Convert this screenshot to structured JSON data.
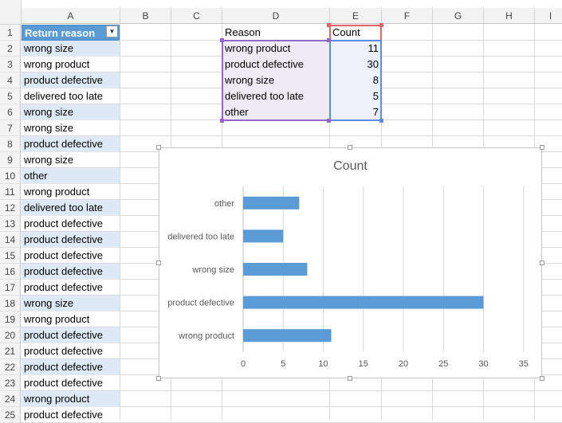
{
  "columns": [
    "A",
    "B",
    "C",
    "D",
    "E",
    "F",
    "G",
    "H",
    "I"
  ],
  "rows": [
    "1",
    "2",
    "3",
    "4",
    "5",
    "6",
    "7",
    "8",
    "9",
    "10",
    "11",
    "12",
    "13",
    "14",
    "15",
    "16",
    "17",
    "18",
    "19",
    "20",
    "21",
    "22",
    "23",
    "24",
    "25"
  ],
  "table_a": {
    "header": "Return reason",
    "values": [
      "wrong size",
      "wrong product",
      "product defective",
      "delivered too late",
      "wrong size",
      "wrong size",
      "product defective",
      "wrong size",
      "other",
      "wrong product",
      "delivered too late",
      "product defective",
      "product defective",
      "product defective",
      "product defective",
      "product defective",
      "wrong size",
      "wrong product",
      "product defective",
      "product defective",
      "product defective",
      "product defective",
      "wrong product",
      "product defective"
    ]
  },
  "summary": {
    "header_reason": "Reason",
    "header_count": "Count",
    "rows": [
      {
        "reason": "wrong product",
        "count": "11"
      },
      {
        "reason": "product defective",
        "count": "30"
      },
      {
        "reason": "wrong size",
        "count": "8"
      },
      {
        "reason": "delivered too late",
        "count": "5"
      },
      {
        "reason": "other",
        "count": "7"
      }
    ]
  },
  "colors": {
    "table_header": "#5b9bd5",
    "band": "#dde9f6",
    "bar": "#5b9bd5",
    "reason_range": "#9465c9",
    "count_range": "#5b8ee0",
    "count_header": "#e06666"
  },
  "chart_data": {
    "type": "bar",
    "orientation": "horizontal",
    "title": "Count",
    "categories": [
      "wrong product",
      "product defective",
      "wrong size",
      "delivered too late",
      "other"
    ],
    "values": [
      11,
      30,
      8,
      5,
      7
    ],
    "xlim": [
      0,
      35
    ],
    "xticks": [
      0,
      5,
      10,
      15,
      20,
      25,
      30,
      35
    ],
    "grid": true,
    "legend": "none"
  }
}
